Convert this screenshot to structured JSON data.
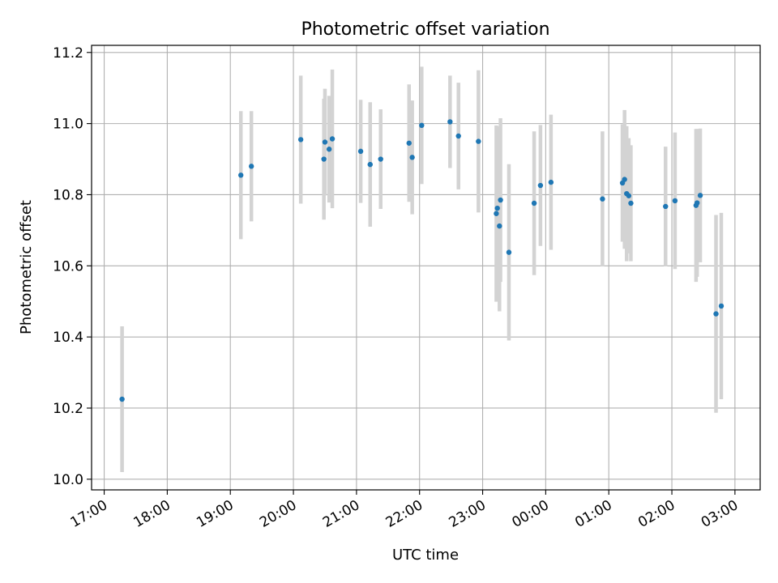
{
  "chart_data": {
    "type": "scatter",
    "title": "Photometric offset variation",
    "xlabel": "UTC time",
    "ylabel": "Photometric offset",
    "ylim": [
      9.97,
      11.22
    ],
    "xlim": [
      "16:48",
      "03:24"
    ],
    "grid": true,
    "legend": "none",
    "x_ticks": [
      "17:00",
      "18:00",
      "19:00",
      "20:00",
      "21:00",
      "22:00",
      "23:00",
      "00:00",
      "01:00",
      "02:00",
      "03:00"
    ],
    "y_ticks": [
      "10.0",
      "10.2",
      "10.4",
      "10.6",
      "10.8",
      "11.0",
      "11.2"
    ],
    "series": [
      {
        "marker_color": "#1f77b4",
        "errorbar_color": "#d3d3d3",
        "points": [
          {
            "time": "17:17",
            "y": 10.225,
            "err": 0.205
          },
          {
            "time": "19:10",
            "y": 10.855,
            "err": 0.18
          },
          {
            "time": "19:20",
            "y": 10.88,
            "err": 0.155
          },
          {
            "time": "20:07",
            "y": 10.955,
            "err": 0.18
          },
          {
            "time": "20:29",
            "y": 10.9,
            "err": 0.17
          },
          {
            "time": "20:30",
            "y": 10.948,
            "err": 0.15
          },
          {
            "time": "20:34",
            "y": 10.928,
            "err": 0.15
          },
          {
            "time": "20:37",
            "y": 10.957,
            "err": 0.195
          },
          {
            "time": "21:04",
            "y": 10.922,
            "err": 0.145
          },
          {
            "time": "21:13",
            "y": 10.885,
            "err": 0.175
          },
          {
            "time": "21:23",
            "y": 10.9,
            "err": 0.14
          },
          {
            "time": "21:50",
            "y": 10.945,
            "err": 0.165
          },
          {
            "time": "21:53",
            "y": 10.905,
            "err": 0.16
          },
          {
            "time": "22:02",
            "y": 10.995,
            "err": 0.165
          },
          {
            "time": "22:29",
            "y": 11.005,
            "err": 0.13
          },
          {
            "time": "22:37",
            "y": 10.965,
            "err": 0.15
          },
          {
            "time": "22:56",
            "y": 10.95,
            "err": 0.2
          },
          {
            "time": "23:13",
            "y": 10.747,
            "err": 0.248
          },
          {
            "time": "23:14",
            "y": 10.762,
            "err": 0.23
          },
          {
            "time": "23:16",
            "y": 10.712,
            "err": 0.24
          },
          {
            "time": "23:17",
            "y": 10.785,
            "err": 0.23
          },
          {
            "time": "23:25",
            "y": 10.638,
            "err": 0.248
          },
          {
            "time": "23:49",
            "y": 10.776,
            "err": 0.202
          },
          {
            "time": "23:55",
            "y": 10.826,
            "err": 0.17
          },
          {
            "time": "00:05",
            "y": 10.835,
            "err": 0.19
          },
          {
            "time": "00:54",
            "y": 10.788,
            "err": 0.19
          },
          {
            "time": "01:13",
            "y": 10.833,
            "err": 0.165
          },
          {
            "time": "01:15",
            "y": 10.843,
            "err": 0.195
          },
          {
            "time": "01:17",
            "y": 10.803,
            "err": 0.19
          },
          {
            "time": "01:19",
            "y": 10.797,
            "err": 0.162
          },
          {
            "time": "01:21",
            "y": 10.776,
            "err": 0.163
          },
          {
            "time": "01:54",
            "y": 10.767,
            "err": 0.168
          },
          {
            "time": "02:03",
            "y": 10.783,
            "err": 0.192
          },
          {
            "time": "02:23",
            "y": 10.77,
            "err": 0.215
          },
          {
            "time": "02:24",
            "y": 10.777,
            "err": 0.208
          },
          {
            "time": "02:27",
            "y": 10.798,
            "err": 0.188
          },
          {
            "time": "02:42",
            "y": 10.465,
            "err": 0.278
          },
          {
            "time": "02:47",
            "y": 10.487,
            "err": 0.262
          }
        ]
      }
    ]
  }
}
